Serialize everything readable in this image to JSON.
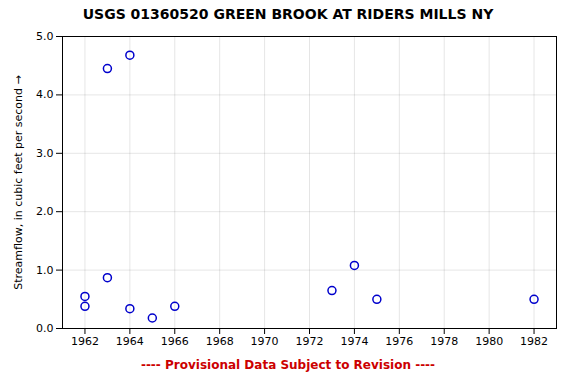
{
  "chart_data": {
    "type": "scatter",
    "title": "USGS 01360520 GREEN BROOK AT RIDERS MILLS NY",
    "ylabel": "Streamflow, in cubic feet per second",
    "footer": "---- Provisional Data Subject to Revision ----",
    "x": [
      1962,
      1962,
      1963,
      1963,
      1964,
      1964,
      1965,
      1966,
      1973,
      1974,
      1975,
      1982
    ],
    "values": [
      0.55,
      0.38,
      0.87,
      4.45,
      4.68,
      0.34,
      0.18,
      0.38,
      0.65,
      1.08,
      0.5,
      0.5
    ],
    "color": "#0000cc",
    "marker": "circle",
    "xlim": [
      1961,
      1983
    ],
    "ylim": [
      0.0,
      5.0
    ],
    "xticks": [
      1962,
      1964,
      1966,
      1968,
      1970,
      1972,
      1974,
      1976,
      1978,
      1980,
      1982
    ],
    "yticks": [
      {
        "value": 0.0,
        "label": "0.0"
      },
      {
        "value": 1.0,
        "label": "1.0"
      },
      {
        "value": 2.0,
        "label": "2.0"
      },
      {
        "value": 3.0,
        "label": "3.0"
      },
      {
        "value": 4.0,
        "label": "4.0"
      },
      {
        "value": 5.0,
        "label": "5.0"
      }
    ],
    "grid": true
  }
}
